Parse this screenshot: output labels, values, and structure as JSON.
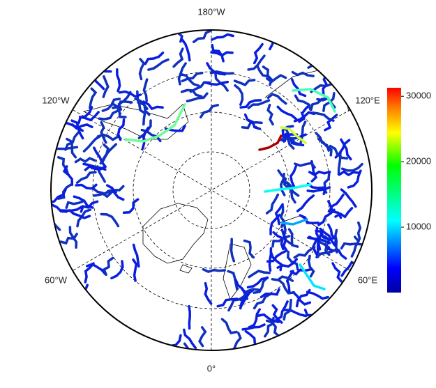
{
  "map": {
    "meridian_labels": [
      "180°W",
      "120°E",
      "60°E",
      "0°",
      "60°W",
      "120°W"
    ],
    "colorbar": {
      "lim": [
        0,
        31300
      ],
      "ticks": [
        10000,
        20000,
        30000
      ]
    },
    "highlighted_river_values": [
      30000,
      18000,
      12000,
      14000,
      15000,
      9000,
      11000
    ]
  }
}
